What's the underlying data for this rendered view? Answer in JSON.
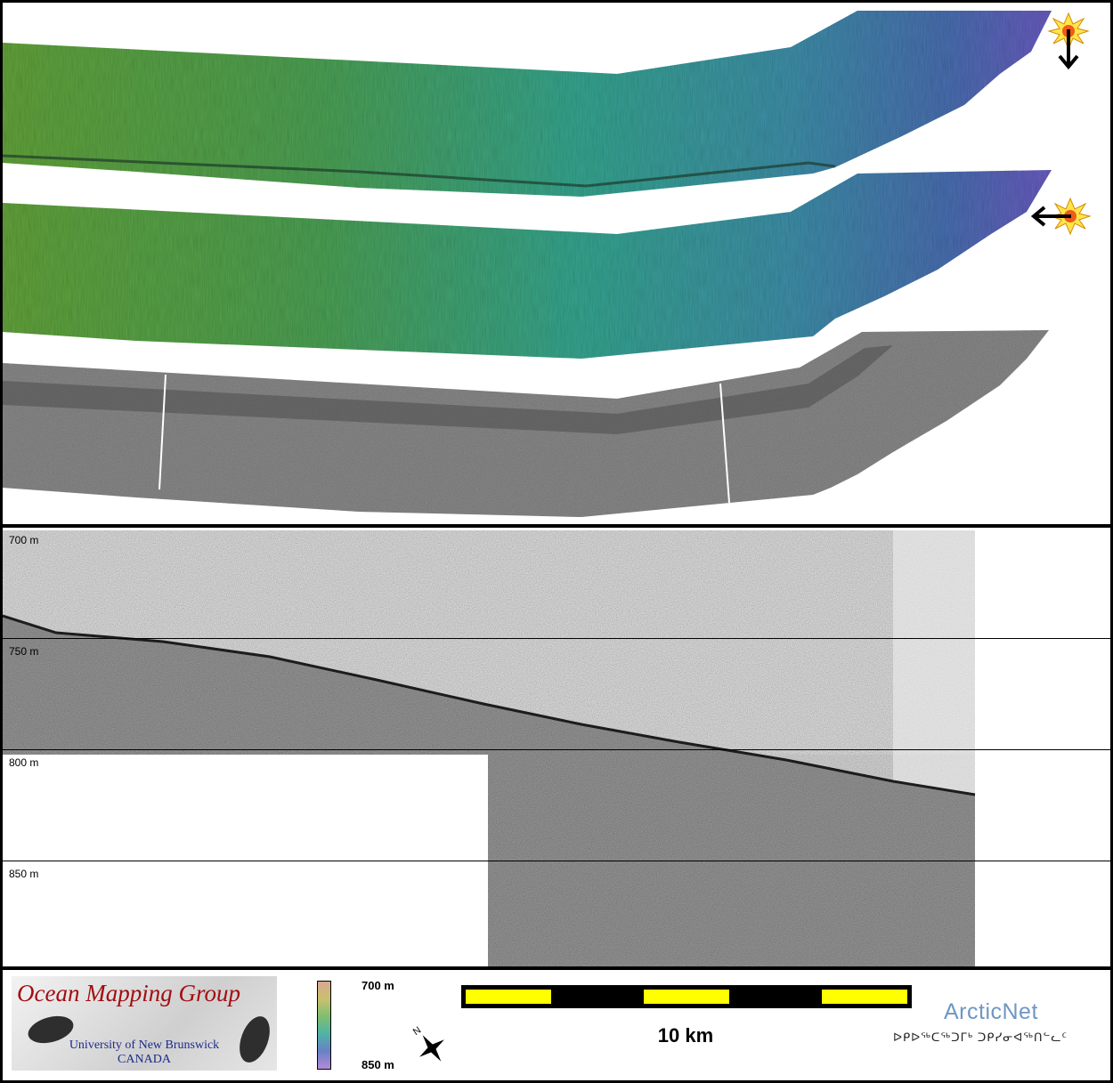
{
  "depth_profile": {
    "labels": [
      "700 m",
      "750 m",
      "800 m",
      "850 m"
    ]
  },
  "legend": {
    "logo_title": "Ocean Mapping Group",
    "logo_line1": "University of New Brunswick",
    "logo_line2": "CANADA",
    "colorbar_top": "700 m",
    "colorbar_bottom": "850 m",
    "north_label": "N",
    "scale_label": "10 km",
    "partner_name": "ArcticNet",
    "partner_syllabics": "ᐅᑭᐅᖅᑕᖅᑐᒥᒃ ᑐᑭᓯᓂᐊᖅᑎᓪᓚᑦ"
  },
  "colors": {
    "logo_title": "#a30d12",
    "logo_sub": "#1b2a8a",
    "scale_yellow": "#ffff00",
    "partner": "#6e97c4"
  }
}
